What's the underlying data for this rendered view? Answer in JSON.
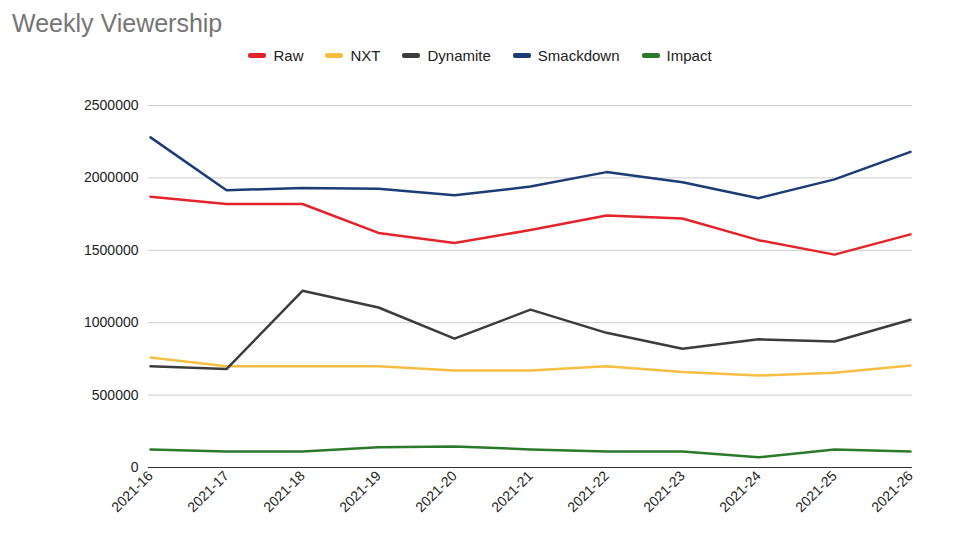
{
  "chart_data": {
    "type": "line",
    "title": "Weekly Viewership",
    "x": [
      "2021-16",
      "2021-17",
      "2021-18",
      "2021-19",
      "2021-20",
      "2021-21",
      "2021-22",
      "2021-23",
      "2021-24",
      "2021-25",
      "2021-26"
    ],
    "series": [
      {
        "name": "Raw",
        "color": "#e3242b",
        "values": [
          1870000,
          1820000,
          1820000,
          1620000,
          1550000,
          1640000,
          1740000,
          1720000,
          1570000,
          1470000,
          1610000
        ]
      },
      {
        "name": "NXT",
        "color": "#f6bf43",
        "values": [
          760000,
          700000,
          700000,
          700000,
          670000,
          670000,
          700000,
          660000,
          635000,
          655000,
          705000
        ]
      },
      {
        "name": "Dynamite",
        "color": "#3c3c3c",
        "values": [
          700000,
          680000,
          1220000,
          1105000,
          890000,
          1090000,
          930000,
          820000,
          885000,
          870000,
          1020000
        ]
      },
      {
        "name": "Smackdown",
        "color": "#1b3c75",
        "values": [
          2280000,
          1915000,
          1930000,
          1925000,
          1880000,
          1940000,
          2040000,
          1970000,
          1860000,
          1990000,
          2180000
        ]
      },
      {
        "name": "Impact",
        "color": "#2b7a2b",
        "values": [
          125000,
          110000,
          110000,
          140000,
          145000,
          125000,
          110000,
          110000,
          70000,
          125000,
          110000
        ]
      }
    ],
    "ylim": [
      0,
      2500000
    ],
    "yticks": [
      0,
      500000,
      1000000,
      1500000,
      2000000,
      2500000
    ],
    "grid": true,
    "legend": "top"
  }
}
